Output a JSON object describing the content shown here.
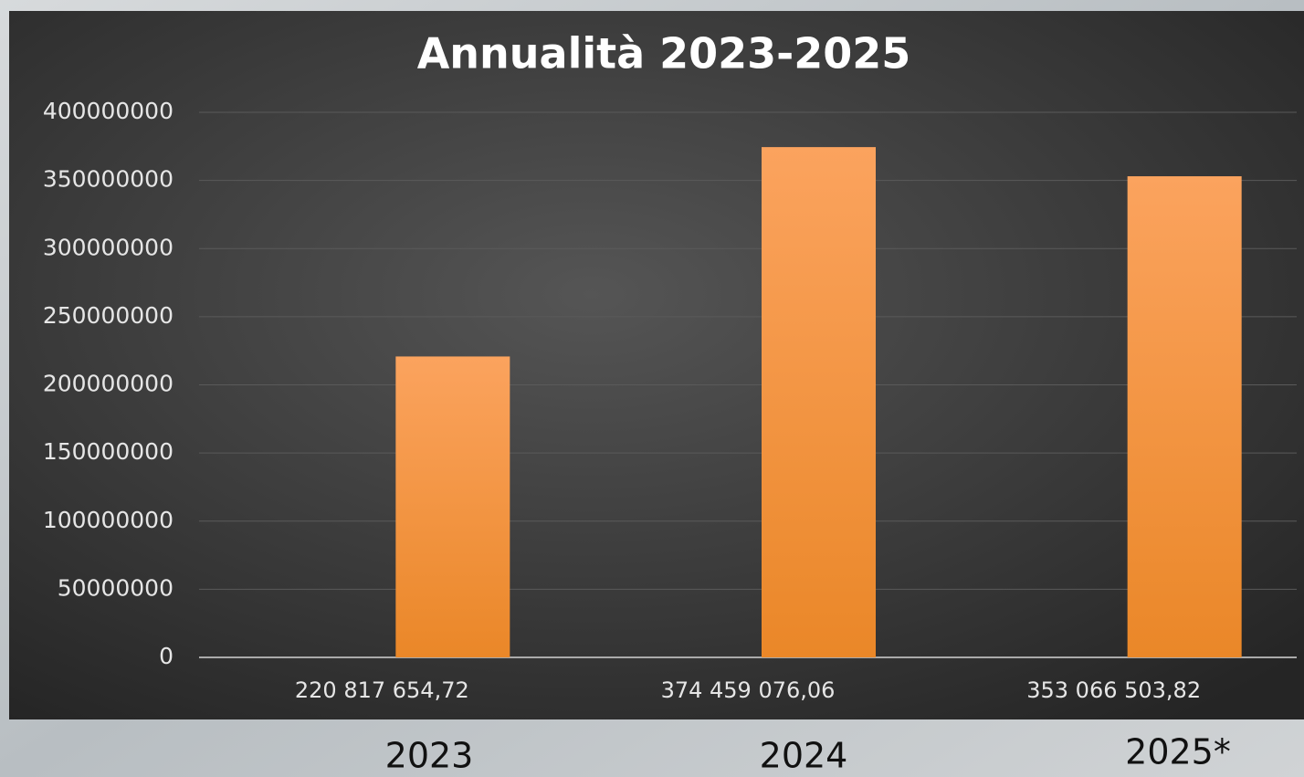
{
  "chart_data": {
    "type": "bar",
    "title": "Annualità 2023-2025",
    "categories": [
      "2023",
      "2024",
      "2025*"
    ],
    "values": [
      220817654.72,
      374459076.06,
      353066503.82
    ],
    "value_labels": [
      "220 817 654,72",
      "374 459 076,06",
      "353 066 503,82"
    ],
    "color": "#f7943a",
    "ylim": [
      0,
      400000000
    ],
    "yticks": [
      0,
      50000000,
      100000000,
      150000000,
      200000000,
      250000000,
      300000000,
      350000000,
      400000000
    ],
    "grid": true
  }
}
